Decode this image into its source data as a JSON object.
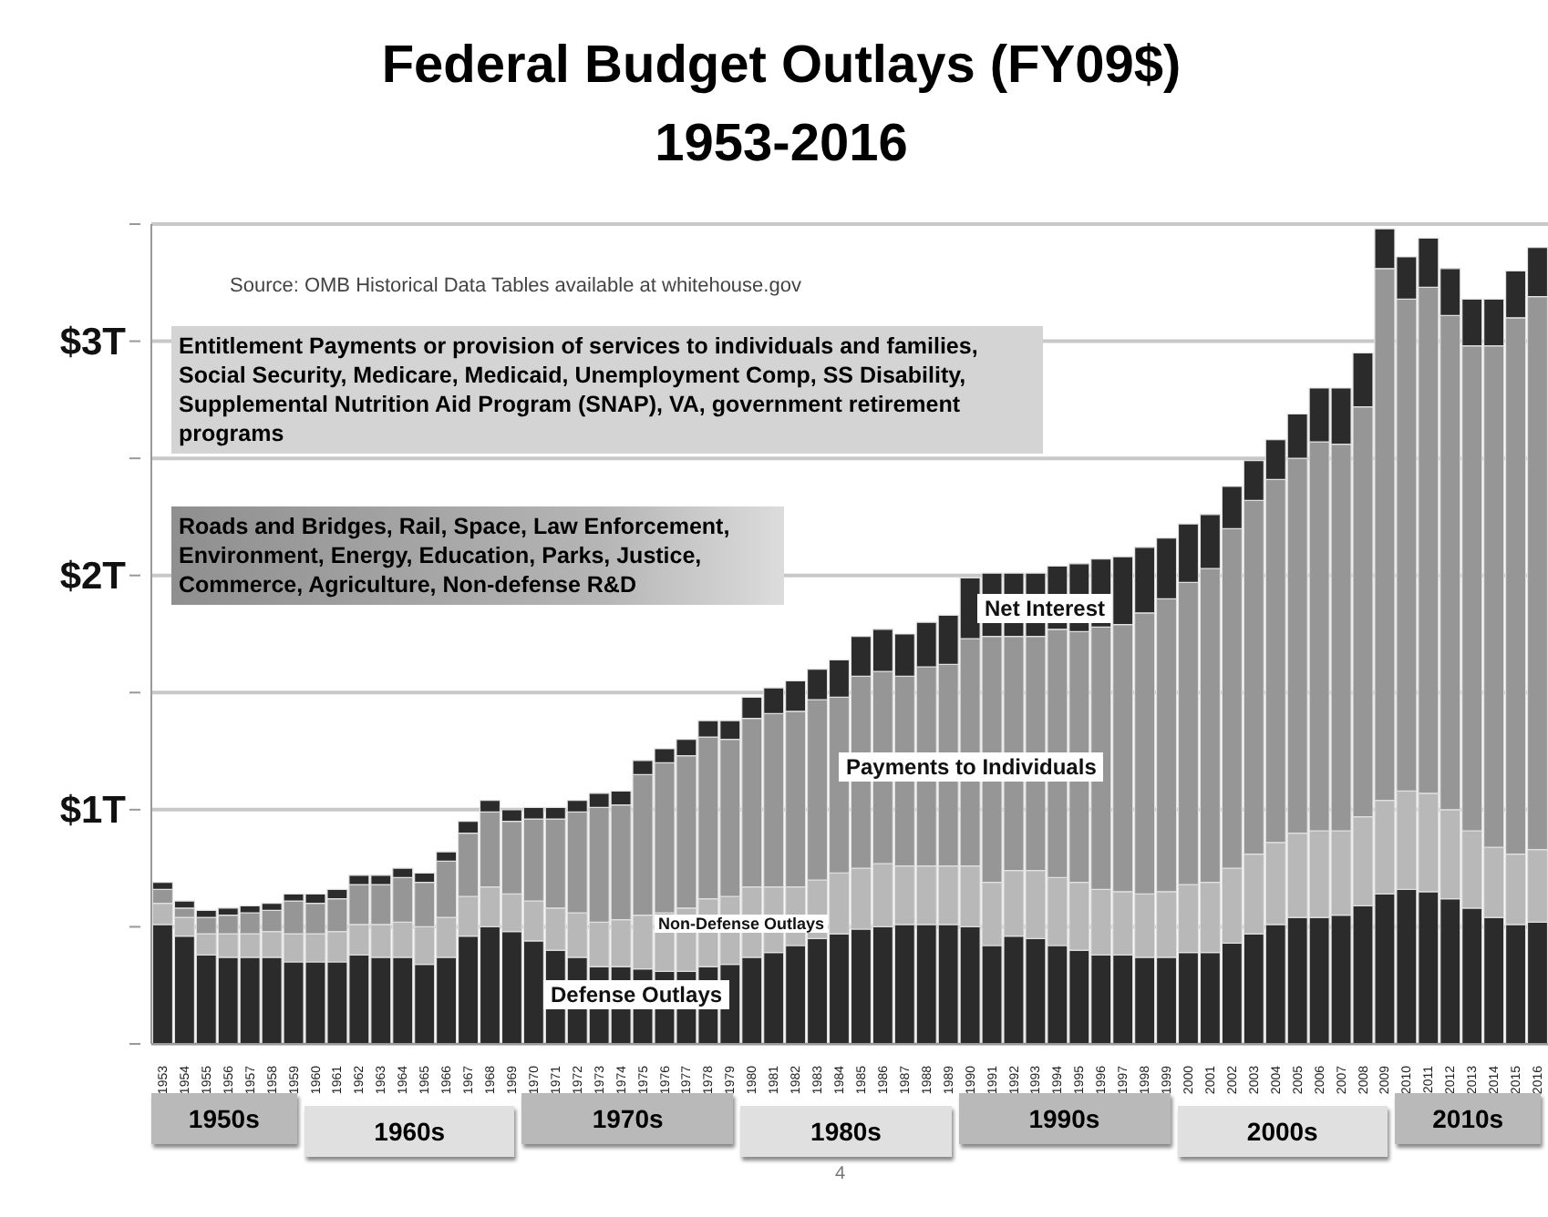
{
  "chart_data": {
    "type": "bar",
    "title": "Federal Budget Outlays (FY09$)",
    "subtitle": "1953-2016",
    "categories": [
      "1953",
      "1954",
      "1955",
      "1956",
      "1957",
      "1958",
      "1959",
      "1960",
      "1961",
      "1962",
      "1963",
      "1964",
      "1965",
      "1966",
      "1967",
      "1968",
      "1969",
      "1970",
      "1971",
      "1972",
      "1973",
      "1974",
      "1975",
      "1976",
      "1977",
      "1978",
      "1979",
      "1980",
      "1981",
      "1982",
      "1983",
      "1984",
      "1985",
      "1986",
      "1987",
      "1988",
      "1989",
      "1990",
      "1991",
      "1992",
      "1993",
      "1994",
      "1995",
      "1996",
      "1997",
      "1998",
      "1999",
      "2000",
      "2001",
      "2002",
      "2003",
      "2004",
      "2005",
      "2006",
      "2007",
      "2008",
      "2009",
      "2010",
      "2011",
      "2012",
      "2013",
      "2014",
      "2015",
      "2016"
    ],
    "stacked": true,
    "series": [
      {
        "name": "Defense Outlays",
        "color": "#2b2b2b",
        "values": [
          0.51,
          0.46,
          0.38,
          0.37,
          0.37,
          0.37,
          0.35,
          0.35,
          0.35,
          0.38,
          0.37,
          0.37,
          0.34,
          0.37,
          0.46,
          0.5,
          0.48,
          0.44,
          0.4,
          0.37,
          0.33,
          0.33,
          0.32,
          0.31,
          0.31,
          0.33,
          0.34,
          0.37,
          0.39,
          0.42,
          0.45,
          0.47,
          0.49,
          0.5,
          0.51,
          0.51,
          0.51,
          0.5,
          0.42,
          0.46,
          0.45,
          0.42,
          0.4,
          0.38,
          0.38,
          0.37,
          0.37,
          0.39,
          0.39,
          0.43,
          0.47,
          0.51,
          0.54,
          0.54,
          0.55,
          0.59,
          0.64,
          0.66,
          0.65,
          0.62,
          0.58,
          0.54,
          0.51,
          0.52
        ]
      },
      {
        "name": "Non-Defense Outlays",
        "color": "#b8b8b8",
        "values": [
          0.09,
          0.08,
          0.09,
          0.1,
          0.1,
          0.11,
          0.12,
          0.12,
          0.13,
          0.13,
          0.14,
          0.15,
          0.16,
          0.17,
          0.17,
          0.17,
          0.16,
          0.17,
          0.18,
          0.19,
          0.19,
          0.2,
          0.23,
          0.25,
          0.27,
          0.29,
          0.29,
          0.3,
          0.28,
          0.25,
          0.25,
          0.26,
          0.26,
          0.27,
          0.25,
          0.25,
          0.25,
          0.26,
          0.27,
          0.28,
          0.29,
          0.29,
          0.29,
          0.28,
          0.27,
          0.27,
          0.28,
          0.29,
          0.3,
          0.32,
          0.34,
          0.35,
          0.36,
          0.37,
          0.36,
          0.38,
          0.4,
          0.42,
          0.42,
          0.38,
          0.33,
          0.3,
          0.3,
          0.31
        ]
      },
      {
        "name": "Payments to Individuals",
        "color": "#969696",
        "values": [
          0.06,
          0.04,
          0.07,
          0.08,
          0.09,
          0.09,
          0.14,
          0.13,
          0.14,
          0.17,
          0.17,
          0.19,
          0.19,
          0.24,
          0.27,
          0.32,
          0.31,
          0.35,
          0.38,
          0.43,
          0.49,
          0.49,
          0.6,
          0.64,
          0.65,
          0.69,
          0.67,
          0.72,
          0.74,
          0.75,
          0.77,
          0.75,
          0.82,
          0.82,
          0.81,
          0.85,
          0.86,
          0.97,
          1.05,
          1.0,
          1.0,
          1.06,
          1.07,
          1.12,
          1.14,
          1.2,
          1.25,
          1.29,
          1.34,
          1.45,
          1.51,
          1.55,
          1.6,
          1.66,
          1.65,
          1.75,
          2.27,
          2.1,
          2.16,
          2.11,
          2.07,
          2.14,
          2.29,
          2.36
        ]
      },
      {
        "name": "Net Interest",
        "color": "#2b2b2b",
        "values": [
          0.03,
          0.03,
          0.03,
          0.03,
          0.03,
          0.03,
          0.03,
          0.04,
          0.04,
          0.04,
          0.04,
          0.04,
          0.04,
          0.04,
          0.05,
          0.05,
          0.05,
          0.05,
          0.05,
          0.05,
          0.06,
          0.06,
          0.06,
          0.06,
          0.07,
          0.07,
          0.08,
          0.09,
          0.11,
          0.13,
          0.13,
          0.16,
          0.17,
          0.18,
          0.18,
          0.19,
          0.21,
          0.26,
          0.27,
          0.27,
          0.27,
          0.27,
          0.29,
          0.29,
          0.29,
          0.28,
          0.26,
          0.25,
          0.23,
          0.18,
          0.17,
          0.17,
          0.19,
          0.23,
          0.24,
          0.23,
          0.17,
          0.18,
          0.21,
          0.2,
          0.2,
          0.2,
          0.2,
          0.21
        ]
      }
    ],
    "ylim": [
      0,
      3.5
    ],
    "yticks": [
      {
        "value": 0,
        "label": null
      },
      {
        "value": 0.5,
        "label": null
      },
      {
        "value": 1,
        "label": "$1T"
      },
      {
        "value": 1.5,
        "label": null
      },
      {
        "value": 2,
        "label": "$2T"
      },
      {
        "value": 2.5,
        "label": null
      },
      {
        "value": 3,
        "label": "$3T"
      },
      {
        "value": 3.5,
        "label": null
      }
    ],
    "grid": "y",
    "annotations": [
      "Source:  OMB Historical Data Tables available at whitehouse.gov",
      "Entitlement Payments  or provision of services to individuals and families, Social Security, Medicare, Medicaid, Unemployment Comp, SS Disability, Supplemental Nutrition Aid Program (SNAP), VA, government retirement programs",
      "Roads and Bridges, Rail, Space, Law Enforcement, Environment, Energy, Education, Parks, Justice, Commerce, Agriculture, Non-defense R&D",
      "1950s",
      "1960s",
      "1970s",
      "1980s",
      "1990s",
      "2000s",
      "2010s",
      "4"
    ]
  }
}
